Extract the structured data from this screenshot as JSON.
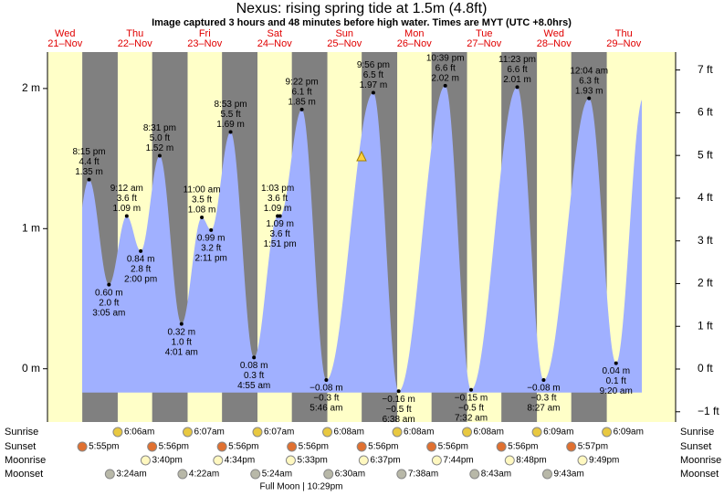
{
  "chart_data": {
    "type": "tide",
    "title": "Nexus: rising  spring tide at 1.5m (4.8ft)",
    "subtitle": "Image captured 3 hours and 48 minutes before high water. Times are MYT (UTC +8.0hrs)",
    "ylim": [
      -0.38,
      2.26
    ],
    "yticks": [
      {
        "value": 0,
        "label": "0 m"
      },
      {
        "value": 1,
        "label": "1 m"
      },
      {
        "value": 2,
        "label": "2 m"
      }
    ],
    "y2lim": [
      -1.24,
      7.42
    ],
    "y2ticks": [
      {
        "value": -1,
        "label": "−1 ft"
      },
      {
        "value": 0,
        "label": "0 ft"
      },
      {
        "value": 1,
        "label": "1 ft"
      },
      {
        "value": 2,
        "label": "2 ft"
      },
      {
        "value": 3,
        "label": "3 ft"
      },
      {
        "value": 4,
        "label": "4 ft"
      },
      {
        "value": 5,
        "label": "5 ft"
      },
      {
        "value": 6,
        "label": "6 ft"
      },
      {
        "value": 7,
        "label": "7 ft"
      }
    ],
    "row_labels": {
      "sunrise": "Sunrise",
      "sunset": "Sunset",
      "moonrise": "Moonrise",
      "moonset": "Moonset"
    },
    "moon_phase": "Full Moon | 10:29pm",
    "days": [
      {
        "weekday": "Wed",
        "date": "21–Nov",
        "sunset": "5:55pm",
        "tides": [
          {
            "time": "8:15 pm",
            "feet": "4.4 ft",
            "height": 1.35,
            "height_label": "1.35 m"
          }
        ]
      },
      {
        "weekday": "Thu",
        "date": "22–Nov",
        "sunrise": "6:06am",
        "sunset": "5:56pm",
        "moonrise": "3:40pm",
        "moonset": "3:24am",
        "tides": [
          {
            "time": "3:05 am",
            "feet": "2.0 ft",
            "height": 0.6,
            "height_label": "0.60 m"
          },
          {
            "time": "9:12 am",
            "feet": "3.6 ft",
            "height": 1.09,
            "height_label": "1.09 m"
          },
          {
            "time": "2:00 pm",
            "feet": "2.8 ft",
            "height": 0.84,
            "height_label": "0.84 m"
          },
          {
            "time": "8:31 pm",
            "feet": "5.0 ft",
            "height": 1.52,
            "height_label": "1.52 m"
          }
        ]
      },
      {
        "weekday": "Fri",
        "date": "23–Nov",
        "sunrise": "6:07am",
        "sunset": "5:56pm",
        "moonrise": "4:34pm",
        "moonset": "4:22am",
        "tides": [
          {
            "time": "4:01 am",
            "feet": "1.0 ft",
            "height": 0.32,
            "height_label": "0.32 m"
          },
          {
            "time": "11:00 am",
            "feet": "3.5 ft",
            "height": 1.08,
            "height_label": "1.08 m"
          },
          {
            "time": "2:11 pm",
            "feet": "3.2 ft",
            "height": 0.99,
            "height_label": "0.99 m"
          },
          {
            "time": "8:53 pm",
            "feet": "5.5 ft",
            "height": 1.69,
            "height_label": "1.69 m"
          }
        ]
      },
      {
        "weekday": "Sat",
        "date": "24–Nov",
        "sunrise": "6:07am",
        "sunset": "5:56pm",
        "moonrise": "5:33pm",
        "moonset": "5:24am",
        "tides": [
          {
            "time": "4:55 am",
            "feet": "0.3 ft",
            "height": 0.08,
            "height_label": "0.08 m"
          },
          {
            "time": "1:03 pm",
            "feet": "3.6 ft",
            "height": 1.09,
            "height_label": "1.09 m"
          },
          {
            "time": "1:51 pm",
            "feet": "3.6 ft",
            "height": 1.09,
            "height_label": "1.09 m"
          },
          {
            "time": "9:22 pm",
            "feet": "6.1 ft",
            "height": 1.85,
            "height_label": "1.85 m"
          }
        ]
      },
      {
        "weekday": "Sun",
        "date": "25–Nov",
        "sunrise": "6:08am",
        "sunset": "5:56pm",
        "moonrise": "6:37pm",
        "moonset": "6:30am",
        "tides": [
          {
            "time": "5:46 am",
            "feet": "−0.3 ft",
            "height": -0.08,
            "height_label": "−0.08 m"
          },
          {
            "time": "9:56 pm",
            "feet": "6.5 ft",
            "height": 1.97,
            "height_label": "1.97 m"
          }
        ]
      },
      {
        "weekday": "Mon",
        "date": "26–Nov",
        "sunrise": "6:08am",
        "sunset": "5:56pm",
        "moonrise": "7:44pm",
        "moonset": "7:38am",
        "tides": [
          {
            "time": "6:38 am",
            "feet": "−0.5 ft",
            "height": -0.16,
            "height_label": "−0.16 m"
          },
          {
            "time": "10:39 pm",
            "feet": "6.6 ft",
            "height": 2.02,
            "height_label": "2.02 m"
          }
        ]
      },
      {
        "weekday": "Tue",
        "date": "27–Nov",
        "sunrise": "6:08am",
        "sunset": "5:56pm",
        "moonrise": "8:48pm",
        "moonset": "8:43am",
        "tides": [
          {
            "time": "7:32 am",
            "feet": "−0.5 ft",
            "height": -0.15,
            "height_label": "−0.15 m"
          },
          {
            "time": "11:23 pm",
            "feet": "6.6 ft",
            "height": 2.01,
            "height_label": "2.01 m"
          }
        ]
      },
      {
        "weekday": "Wed",
        "date": "28–Nov",
        "sunrise": "6:09am",
        "sunset": "5:57pm",
        "moonrise": "9:49pm",
        "moonset": "9:43am",
        "tides": [
          {
            "time": "8:27 am",
            "feet": "−0.3 ft",
            "height": -0.08,
            "height_label": "−0.08 m"
          }
        ]
      },
      {
        "weekday": "Thu",
        "date": "29–Nov",
        "sunrise": "6:09am",
        "tides": [
          {
            "time": "12:04 am",
            "feet": "6.3 ft",
            "height": 1.93,
            "height_label": "1.93 m"
          },
          {
            "time": "9:20 am",
            "feet": "0.1 ft",
            "height": 0.04,
            "height_label": "0.04 m"
          }
        ]
      }
    ]
  }
}
